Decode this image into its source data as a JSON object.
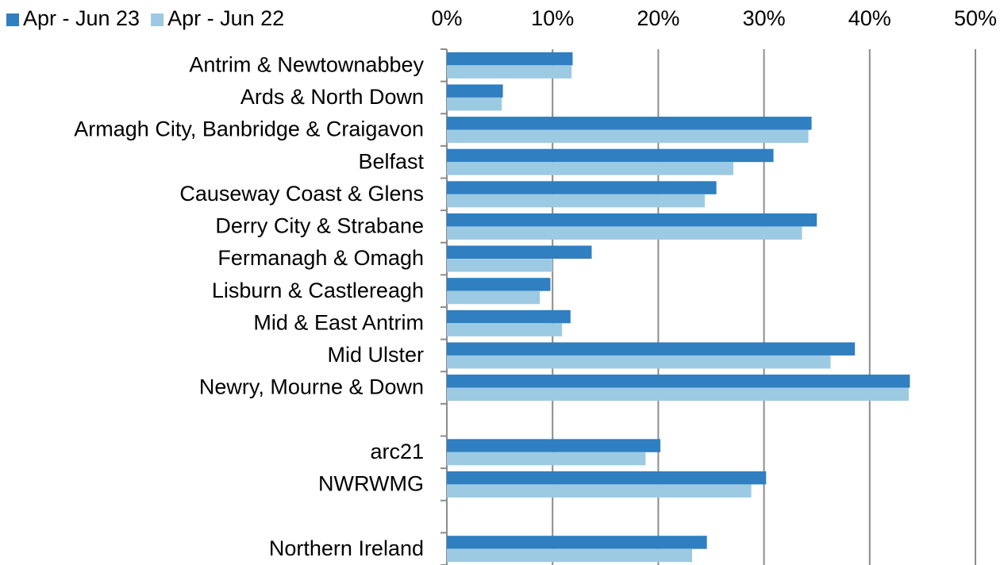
{
  "chart_data": {
    "type": "bar",
    "orientation": "horizontal",
    "categories": [
      "Antrim & Newtownabbey",
      "Ards & North Down",
      "Armagh City, Banbridge & Craigavon",
      "Belfast",
      "Causeway Coast & Glens",
      "Derry City & Strabane",
      "Fermanagh & Omagh",
      "Lisburn & Castlereagh",
      "Mid & East Antrim",
      "Mid Ulster",
      "Newry, Mourne & Down",
      null,
      "arc21",
      "NWRWMG",
      null,
      "Northern Ireland"
    ],
    "series": [
      {
        "name": "Apr - Jun 23",
        "color": "#2f7fc1",
        "values": [
          11.9,
          5.3,
          34.5,
          30.9,
          25.5,
          35.0,
          13.7,
          9.8,
          11.7,
          38.6,
          43.8,
          null,
          20.2,
          30.2,
          null,
          24.6
        ]
      },
      {
        "name": "Apr - Jun 22",
        "color": "#9dcae3",
        "values": [
          11.8,
          5.2,
          34.2,
          27.1,
          24.4,
          33.6,
          10.0,
          8.8,
          10.9,
          36.3,
          43.7,
          null,
          18.8,
          28.8,
          null,
          23.2
        ]
      }
    ],
    "xlim": [
      0,
      50
    ],
    "xticks": [
      {
        "value": 0,
        "label": "0%"
      },
      {
        "value": 10,
        "label": "10%"
      },
      {
        "value": 20,
        "label": "20%"
      },
      {
        "value": 30,
        "label": "30%"
      },
      {
        "value": 40,
        "label": "40%"
      },
      {
        "value": 50,
        "label": "50%"
      }
    ],
    "grid": true,
    "legend": "top-left"
  }
}
